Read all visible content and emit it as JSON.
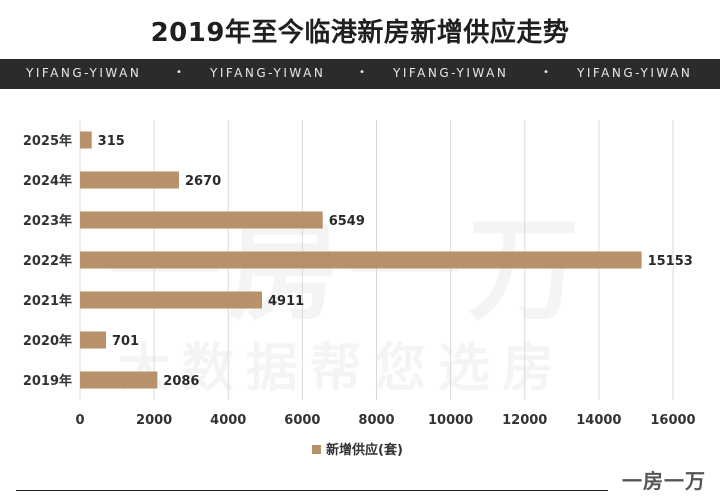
{
  "header": {
    "title": "2019年至今临港新房新增供应走势",
    "band_text": [
      "YIFANG-YIWAN",
      "YIFANG-YIWAN",
      "YIFANG-YIWAN",
      "YIFANG-YIWAN"
    ],
    "band_separator": "•"
  },
  "watermark": {
    "big": "一房一万",
    "small": "大数据帮您选房"
  },
  "logo": "一房一万",
  "colors": {
    "bar": "#b8916a",
    "band_bg": "#2b2b2b",
    "grid": "#d9d9d9"
  },
  "chart_data": {
    "type": "bar",
    "orientation": "horizontal",
    "categories": [
      "2025年",
      "2024年",
      "2023年",
      "2022年",
      "2021年",
      "2020年",
      "2019年"
    ],
    "series": [
      {
        "name": "新增供应(套)",
        "values": [
          315,
          2670,
          6549,
          15153,
          4911,
          701,
          2086
        ]
      }
    ],
    "xlim": [
      0,
      16000
    ],
    "xticks": [
      0,
      2000,
      4000,
      6000,
      8000,
      10000,
      12000,
      14000,
      16000
    ],
    "grid": true,
    "legend": "bottom",
    "data_labels": true
  }
}
